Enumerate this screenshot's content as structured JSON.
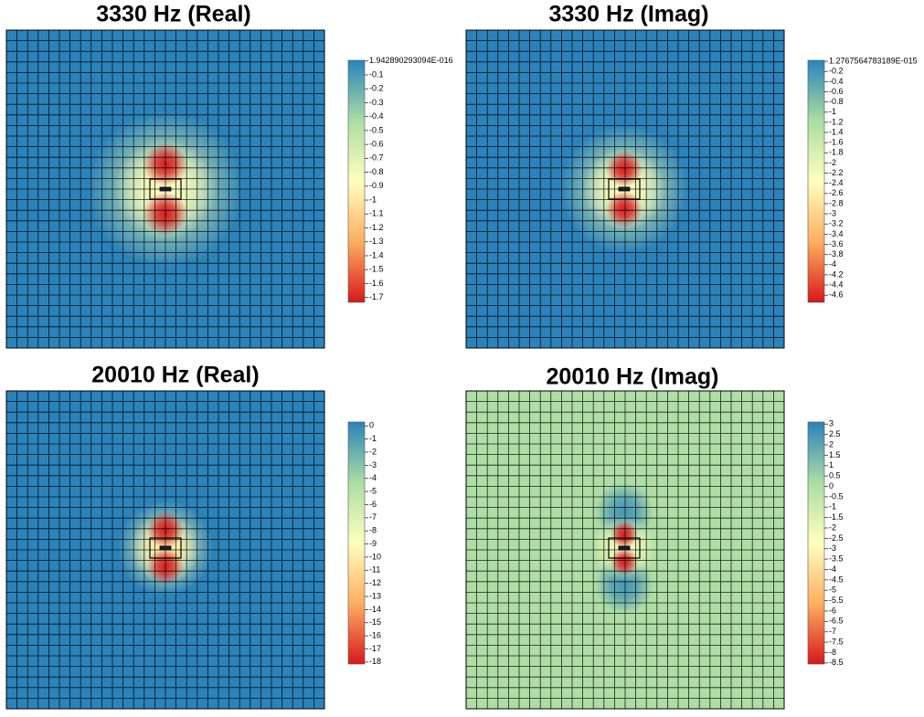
{
  "chart_data": [
    {
      "type": "heatmap",
      "title": "3330 Hz (Real)",
      "colors": [
        "#d7191c",
        "#fdae61",
        "#ffffbf",
        "#abdda4",
        "#2b83ba"
      ],
      "clim": [
        -1.735,
        0.005
      ],
      "cticks": [
        {
          "value": 1.942890293094e-16,
          "label": "1.942890293094E-016"
        },
        -0.1,
        -0.2,
        -0.3,
        -0.4,
        -0.5,
        -0.6,
        -0.7,
        -0.8,
        -0.9,
        -1,
        -1.1,
        -1.2,
        -1.3,
        -1.4,
        -1.5,
        -1.6,
        -1.7
      ]
    },
    {
      "type": "heatmap",
      "title": "3330 Hz (Imag)",
      "colors": [
        "#d7191c",
        "#fdae61",
        "#ffffbf",
        "#abdda4",
        "#2b83ba"
      ],
      "clim": [
        -4.74,
        0.02
      ],
      "cticks": [
        {
          "value": 1.2767564783189e-15,
          "label": "1.2767564783189E-015"
        },
        -0.2,
        -0.4,
        -0.6,
        -0.8,
        -1,
        -1.2,
        -1.4,
        -1.6,
        -1.8,
        -2,
        -2.2,
        -2.4,
        -2.6,
        -2.8,
        -3,
        -3.2,
        -3.4,
        -3.6,
        -3.8,
        -4,
        -4.2,
        -4.4,
        -4.6
      ]
    },
    {
      "type": "heatmap",
      "title": "20010 Hz (Real)",
      "colors": [
        "#d7191c",
        "#fdae61",
        "#ffffbf",
        "#abdda4",
        "#2b83ba"
      ],
      "clim": [
        -18.15,
        0.3
      ],
      "cticks": [
        0,
        -1,
        -2,
        -3,
        -4,
        -5,
        -6,
        -7,
        -8,
        -9,
        -10,
        -11,
        -12,
        -13,
        -14,
        -15,
        -16,
        -17,
        -18
      ]
    },
    {
      "type": "heatmap",
      "title": "20010 Hz (Imag)",
      "colors": [
        "#d7191c",
        "#fdae61",
        "#ffffbf",
        "#abdda4",
        "#2b83ba"
      ],
      "clim": [
        -8.55,
        3.1
      ],
      "cticks": [
        3,
        2.5,
        2,
        1.5,
        1,
        0.5,
        0,
        -0.5,
        -1,
        -1.5,
        -2,
        -2.5,
        -3,
        -3.5,
        -4,
        -4.5,
        -5,
        -5.5,
        -6,
        -6.5,
        -7,
        -7.5,
        -8,
        -8.5
      ]
    }
  ]
}
